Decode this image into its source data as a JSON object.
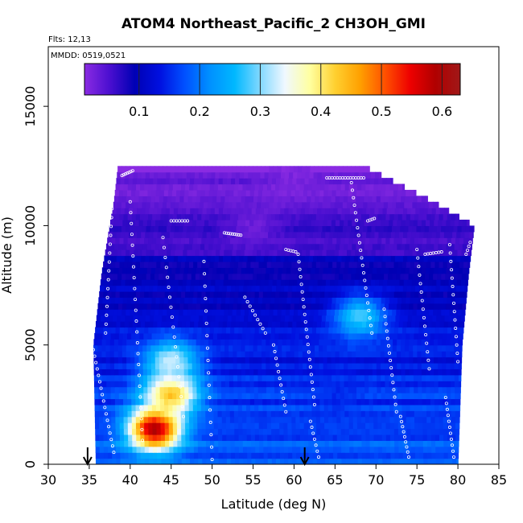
{
  "chart_data": {
    "type": "heatmap",
    "title": "ATOM4 Northeast_Pacific_2 CH3OH_GMI",
    "flights_label": "Flts: 12,13",
    "dates_label": "MMDD: 0519,0521",
    "xlabel": "Latitude (deg N)",
    "ylabel": "Altitude (m)",
    "xlim": [
      30,
      85
    ],
    "ylim": [
      0,
      17500
    ],
    "x_ticks": [
      30,
      35,
      40,
      45,
      50,
      55,
      60,
      65,
      70,
      75,
      80,
      85
    ],
    "y_ticks": [
      0,
      5000,
      10000,
      15000
    ],
    "colorbar": {
      "min": 0.01,
      "max": 0.63,
      "ticks": [
        0.1,
        0.2,
        0.3,
        0.4,
        0.5,
        0.6
      ],
      "colors": [
        "#8a2be2",
        "#4b0fd0",
        "#0000b4",
        "#0010e0",
        "#0050ff",
        "#0090ff",
        "#00b8ff",
        "#80d8ff",
        "#f0f8ff",
        "#ffffa0",
        "#ffd030",
        "#ffa000",
        "#ff5000",
        "#ee0000",
        "#b00000",
        "#a01818"
      ]
    },
    "arrows_lat": [
      34.8,
      61.3
    ],
    "lat_range_by_altitude": [
      {
        "alt": 0,
        "lat_min": 35.8,
        "lat_max": 80.0
      },
      {
        "alt": 5000,
        "lat_min": 35.5,
        "lat_max": 80.5
      },
      {
        "alt": 8000,
        "lat_min": 36.5,
        "lat_max": 81.3
      },
      {
        "alt": 10000,
        "lat_min": 37.5,
        "lat_max": 82.0
      },
      {
        "alt": 11000,
        "lat_min": 38.0,
        "lat_max": 77.0
      },
      {
        "alt": 12500,
        "lat_min": 38.5,
        "lat_max": 68.5
      }
    ],
    "features": [
      {
        "lat": 43.0,
        "alt": 1500,
        "value": 0.6
      },
      {
        "lat": 45.0,
        "alt": 3000,
        "value": 0.45
      },
      {
        "lat": 45.0,
        "alt": 4300,
        "value": 0.33
      },
      {
        "lat": 68.0,
        "alt": 6200,
        "value": 0.28
      },
      {
        "lat": 65.0,
        "alt": 3000,
        "value": 0.15
      },
      {
        "lat": 55.0,
        "alt": 10000,
        "value": 0.03
      },
      {
        "lat": 60.0,
        "alt": 12000,
        "value": 0.02
      }
    ]
  }
}
